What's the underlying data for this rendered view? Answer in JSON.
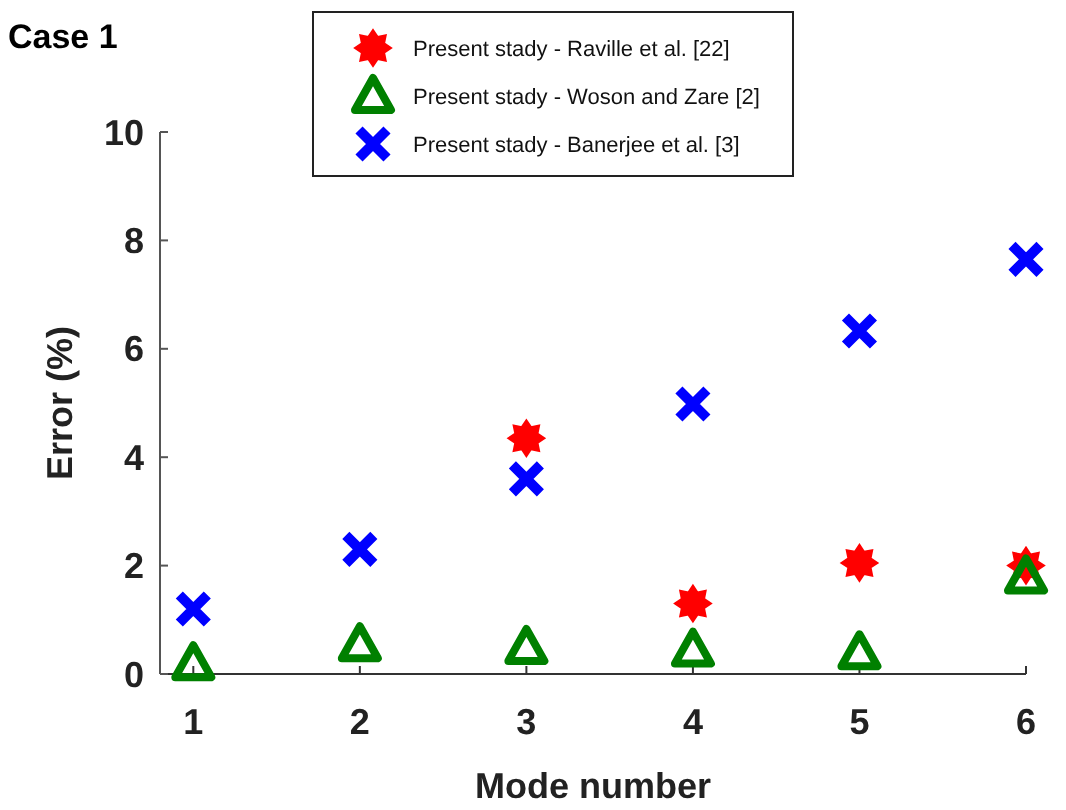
{
  "chart_data": {
    "type": "scatter",
    "title": "Case 1",
    "xlabel": "Mode number",
    "ylabel": "Error (%)",
    "x": [
      1,
      2,
      3,
      4,
      5,
      6
    ],
    "xlim": [
      0.8,
      6
    ],
    "xticks": [
      1,
      2,
      3,
      4,
      5,
      6
    ],
    "ylim": [
      0,
      10
    ],
    "yticks": [
      0,
      2,
      4,
      6,
      8,
      10
    ],
    "grid": false,
    "legend": "top",
    "series": [
      {
        "name": "Present stady - Raville et al. [22]",
        "color": "#ff0000",
        "marker": "star",
        "values": [
          null,
          null,
          4.35,
          1.3,
          2.05,
          2.0
        ]
      },
      {
        "name": "Present stady - Woson and Zare [2]",
        "color": "#008000",
        "marker": "triangle",
        "values": [
          0.2,
          0.55,
          0.5,
          0.45,
          0.4,
          1.8
        ]
      },
      {
        "name": "Present stady - Banerjee et al. [3]",
        "color": "#0000ff",
        "marker": "cross",
        "values": [
          1.2,
          2.3,
          3.6,
          4.98,
          6.33,
          7.65
        ]
      }
    ]
  }
}
